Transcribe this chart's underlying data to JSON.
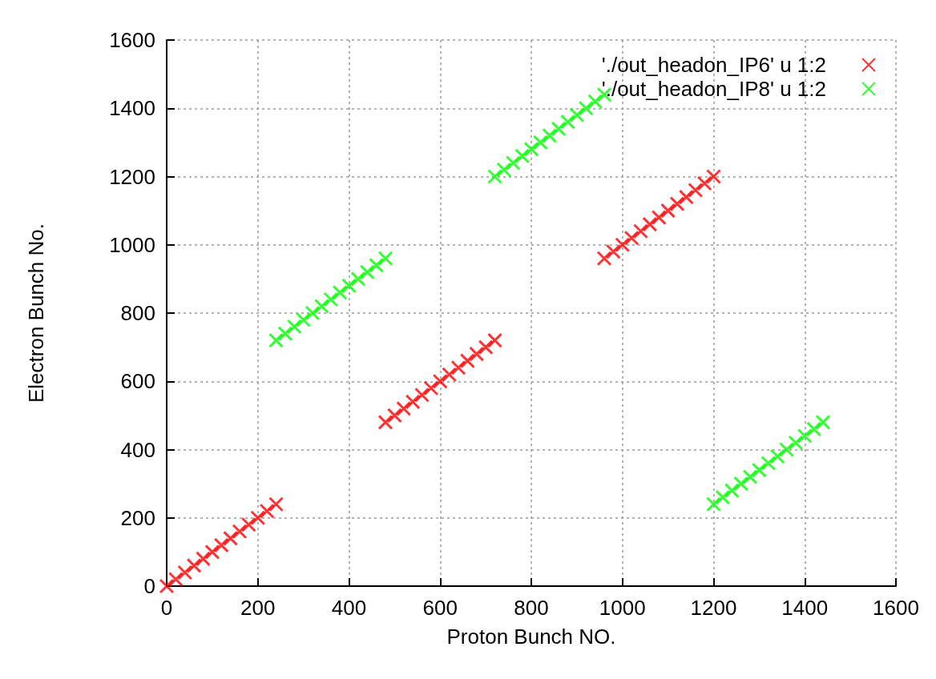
{
  "chart_data": {
    "type": "scatter",
    "xlabel": "Proton Bunch NO.",
    "ylabel": "Electron Bunch No.",
    "xlim": [
      0,
      1600
    ],
    "ylim": [
      0,
      1600
    ],
    "xticks": [
      0,
      200,
      400,
      600,
      800,
      1000,
      1200,
      1400,
      1600
    ],
    "yticks": [
      0,
      200,
      400,
      600,
      800,
      1000,
      1200,
      1400,
      1600
    ],
    "grid": true,
    "legend": "top right",
    "marker": "cross",
    "series": [
      {
        "name": "'./out_headon_IP6' u 1:2",
        "color": "#ff0000",
        "x": [
          0,
          20,
          40,
          60,
          80,
          100,
          120,
          140,
          160,
          180,
          200,
          220,
          240,
          480,
          500,
          520,
          540,
          560,
          580,
          600,
          620,
          640,
          660,
          680,
          700,
          720,
          960,
          980,
          1000,
          1020,
          1040,
          1060,
          1080,
          1100,
          1120,
          1140,
          1160,
          1180,
          1200
        ],
        "values": [
          0,
          20,
          40,
          60,
          80,
          100,
          120,
          140,
          160,
          180,
          200,
          220,
          240,
          480,
          500,
          520,
          540,
          560,
          580,
          600,
          620,
          640,
          660,
          680,
          700,
          720,
          960,
          980,
          1000,
          1020,
          1040,
          1060,
          1080,
          1100,
          1120,
          1140,
          1160,
          1180,
          1200
        ]
      },
      {
        "name": "'./out_headon_IP8' u 1:2",
        "color": "#00ff00",
        "x": [
          240,
          260,
          280,
          300,
          320,
          340,
          360,
          380,
          400,
          420,
          440,
          460,
          480,
          720,
          740,
          760,
          780,
          800,
          820,
          840,
          860,
          880,
          900,
          920,
          940,
          960,
          1200,
          1220,
          1240,
          1260,
          1280,
          1300,
          1320,
          1340,
          1360,
          1380,
          1400,
          1420,
          1440
        ],
        "values": [
          720,
          740,
          760,
          780,
          800,
          820,
          840,
          860,
          880,
          900,
          920,
          940,
          960,
          1200,
          1220,
          1240,
          1260,
          1280,
          1300,
          1320,
          1340,
          1360,
          1380,
          1400,
          1420,
          1440,
          240,
          260,
          280,
          300,
          320,
          340,
          360,
          380,
          400,
          420,
          440,
          460,
          480
        ]
      }
    ]
  }
}
